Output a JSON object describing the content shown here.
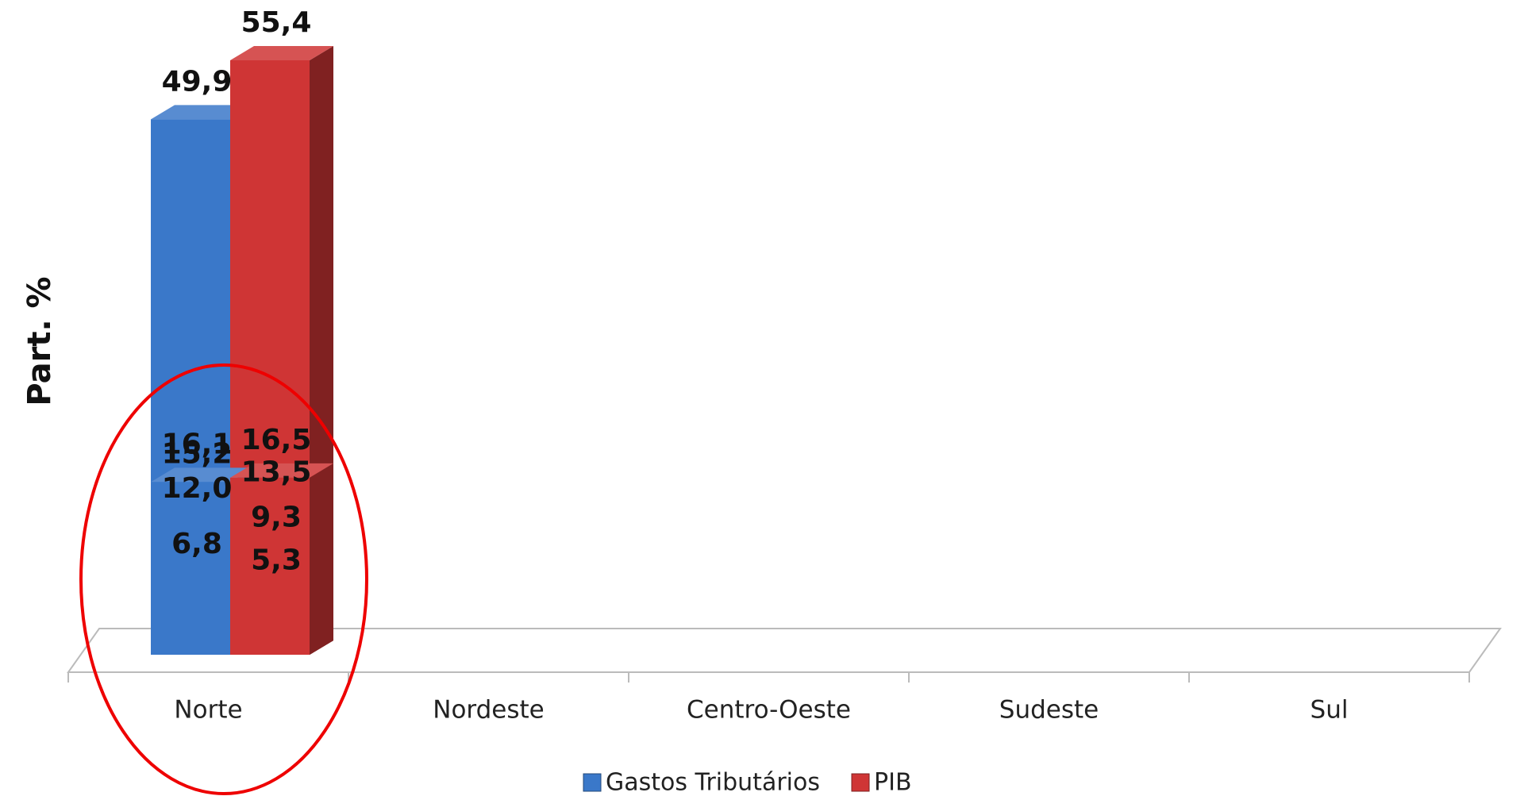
{
  "chart_data": {
    "type": "bar3d",
    "y_label": "Part. %",
    "categories": [
      "Norte",
      "Nordeste",
      "Centro-Oeste",
      "Sudeste",
      "Sul"
    ],
    "series": [
      {
        "name": "Gastos Tributários",
        "color": "#3a78c9",
        "values": [
          15.2,
          12.0,
          6.8,
          49.9,
          16.1
        ],
        "value_labels": [
          "15,2",
          "12,0",
          "6,8",
          "49,9",
          "16,1"
        ]
      },
      {
        "name": "PIB",
        "color": "#cf3535",
        "values": [
          5.3,
          13.5,
          9.3,
          55.4,
          16.5
        ],
        "value_labels": [
          "5,3",
          "13,5",
          "9,3",
          "55,4",
          "16,5"
        ]
      }
    ],
    "legend": "bottom"
  }
}
